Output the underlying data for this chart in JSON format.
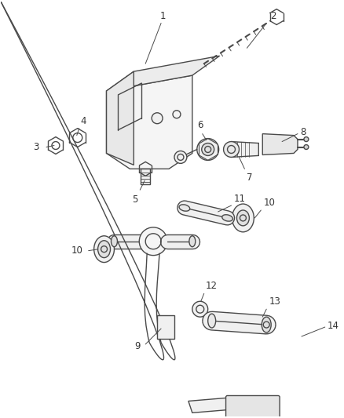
{
  "background_color": "#ffffff",
  "figsize": [
    4.38,
    5.33
  ],
  "dpi": 100,
  "line_color": "#4a4a4a",
  "text_color": "#333333",
  "font_size": 8.5,
  "line_width": 1.0
}
